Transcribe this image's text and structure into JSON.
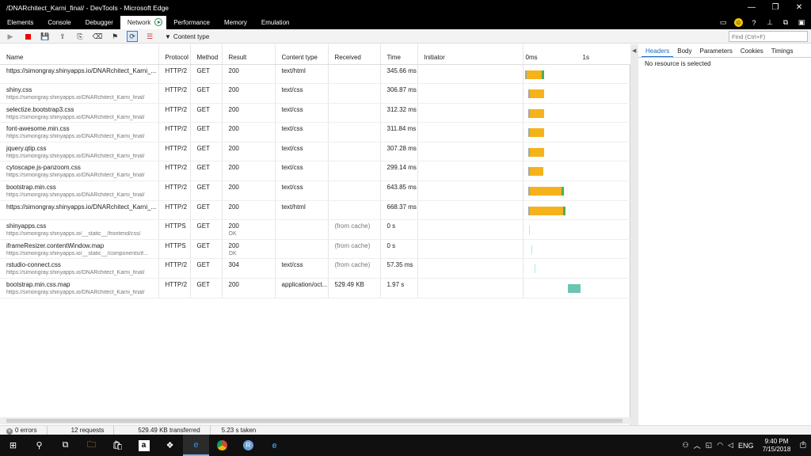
{
  "window": {
    "title": "/DNARchitect_Karni_final/ - DevTools - Microsoft Edge"
  },
  "tabs": [
    "Elements",
    "Console",
    "Debugger",
    "Network",
    "Performance",
    "Memory",
    "Emulation"
  ],
  "active_tab": "Network",
  "toolbar": {
    "filter_label": "Content type",
    "find_placeholder": "Find (Ctrl+F)"
  },
  "columns": [
    "Name",
    "Protocol",
    "Method",
    "Result",
    "Content type",
    "Received",
    "Time",
    "Initiator"
  ],
  "timeline": {
    "tick0": "0ms",
    "tick1": "1s"
  },
  "rows": [
    {
      "name": "https://simongray.shinyapps.io/DNARchitect_Karni_...",
      "path": "",
      "protocol": "HTTP/2",
      "method": "GET",
      "result": "200",
      "result_sub": "",
      "content_type": "text/html",
      "received": "",
      "time": "345.66 ms",
      "initiator": "",
      "start": 0.0,
      "dur": 0.35,
      "kind": "normal"
    },
    {
      "name": "shiny.css",
      "path": "https://simongray.shinyapps.io/DNARchitect_Karni_final/",
      "protocol": "HTTP/2",
      "method": "GET",
      "result": "200",
      "result_sub": "",
      "content_type": "text/css",
      "received": "",
      "time": "306.87 ms",
      "initiator": "",
      "start": 0.07,
      "dur": 0.31,
      "kind": "normal"
    },
    {
      "name": "selectize.bootstrap3.css",
      "path": "https://simongray.shinyapps.io/DNARchitect_Karni_final/",
      "protocol": "HTTP/2",
      "method": "GET",
      "result": "200",
      "result_sub": "",
      "content_type": "text/css",
      "received": "",
      "time": "312.32 ms",
      "initiator": "",
      "start": 0.07,
      "dur": 0.31,
      "kind": "normal"
    },
    {
      "name": "font-awesome.min.css",
      "path": "https://simongray.shinyapps.io/DNARchitect_Karni_final/",
      "protocol": "HTTP/2",
      "method": "GET",
      "result": "200",
      "result_sub": "",
      "content_type": "text/css",
      "received": "",
      "time": "311.84 ms",
      "initiator": "",
      "start": 0.07,
      "dur": 0.31,
      "kind": "normal"
    },
    {
      "name": "jquery.qtip.css",
      "path": "https://simongray.shinyapps.io/DNARchitect_Karni_final/",
      "protocol": "HTTP/2",
      "method": "GET",
      "result": "200",
      "result_sub": "",
      "content_type": "text/css",
      "received": "",
      "time": "307.28 ms",
      "initiator": "",
      "start": 0.07,
      "dur": 0.31,
      "kind": "normal"
    },
    {
      "name": "cytoscape.js-panzoom.css",
      "path": "https://simongray.shinyapps.io/DNARchitect_Karni_final/",
      "protocol": "HTTP/2",
      "method": "GET",
      "result": "200",
      "result_sub": "",
      "content_type": "text/css",
      "received": "",
      "time": "299.14 ms",
      "initiator": "",
      "start": 0.07,
      "dur": 0.3,
      "kind": "normal"
    },
    {
      "name": "bootstrap.min.css",
      "path": "https://simongray.shinyapps.io/DNARchitect_Karni_final/",
      "protocol": "HTTP/2",
      "method": "GET",
      "result": "200",
      "result_sub": "",
      "content_type": "text/css",
      "received": "",
      "time": "643.85 ms",
      "initiator": "",
      "start": 0.07,
      "dur": 0.64,
      "kind": "normal"
    },
    {
      "name": "https://simongray.shinyapps.io/DNARchitect_Karni_...",
      "path": "",
      "protocol": "HTTP/2",
      "method": "GET",
      "result": "200",
      "result_sub": "",
      "content_type": "text/html",
      "received": "",
      "time": "668.37 ms",
      "initiator": "",
      "start": 0.07,
      "dur": 0.67,
      "kind": "normal"
    },
    {
      "name": "shinyapps.css",
      "path": "https://simongray.shinyapps.io/__static__/frontend/css/",
      "protocol": "HTTPS",
      "method": "GET",
      "result": "200",
      "result_sub": "OK",
      "content_type": "",
      "received": "(from cache)",
      "time": "0 s",
      "initiator": "",
      "start": 0.08,
      "dur": 0,
      "kind": "line"
    },
    {
      "name": "iframeResizer.contentWindow.map",
      "path": "https://simongray.shinyapps.io/__static__/components/if...",
      "protocol": "HTTPS",
      "method": "GET",
      "result": "200",
      "result_sub": "OK",
      "content_type": "",
      "received": "(from cache)",
      "time": "0 s",
      "initiator": "",
      "start": 0.12,
      "dur": 0,
      "kind": "line"
    },
    {
      "name": "rstudio-connect.css",
      "path": "https://simongray.shinyapps.io/DNARchitect_Karni_final/",
      "protocol": "HTTP/2",
      "method": "GET",
      "result": "304",
      "result_sub": "",
      "content_type": "text/css",
      "received": "(from cache)",
      "time": "57.35 ms",
      "initiator": "",
      "start": 0.18,
      "dur": 0,
      "kind": "line"
    },
    {
      "name": "bootstrap.min.css.map",
      "path": "https://simongray.shinyapps.io/DNARchitect_Karni_final/",
      "protocol": "HTTP/2",
      "method": "GET",
      "result": "200",
      "result_sub": "",
      "content_type": "application/oct...",
      "received": "529.49 KB",
      "time": "1.97 s",
      "initiator": "",
      "start": 0.78,
      "dur": 0.23,
      "kind": "teal"
    }
  ],
  "details": {
    "tabs": [
      "Headers",
      "Body",
      "Parameters",
      "Cookies",
      "Timings"
    ],
    "active": "Headers",
    "message": "No resource is selected"
  },
  "status": {
    "errors": "0 errors",
    "requests": "12 requests",
    "transferred": "529.49 KB transferred",
    "taken": "5.23 s taken"
  },
  "taskbar": {
    "time": "9:40 PM",
    "date": "7/15/2018",
    "lang": "ENG",
    "notifications": "2"
  }
}
